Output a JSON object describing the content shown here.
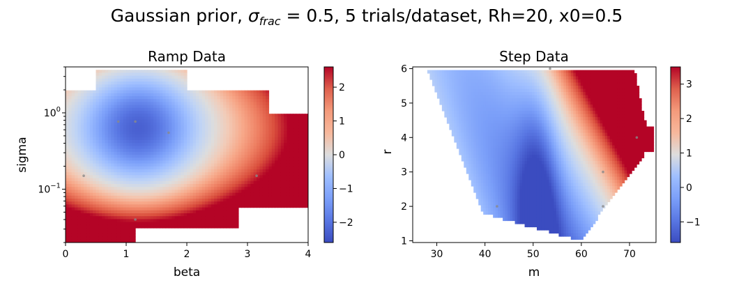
{
  "figure": {
    "title_prefix": "Gaussian prior, ",
    "title_sigma": "σ",
    "title_sub": "frac",
    "title_suffix": " = 0.5, 5 trials/dataset, Rh=20, x0=0.5"
  },
  "chart_data": [
    {
      "type": "heatmap",
      "title": "Ramp Data",
      "xlabel": "beta",
      "ylabel": "sigma",
      "xlim": [
        0,
        4
      ],
      "ylim": [
        0.02,
        4
      ],
      "yscale": "log",
      "x_ticks": [
        "0",
        "1",
        "2",
        "3",
        "4"
      ],
      "y_ticks": [
        {
          "value": 0.1,
          "base": "10",
          "exp": "−1"
        },
        {
          "value": 1,
          "base": "10",
          "exp": "0"
        }
      ],
      "colormap": "coolwarm",
      "colorbar": {
        "min": -2.6,
        "max": 2.6,
        "ticks": [
          "−2",
          "−1",
          "0",
          "1",
          "2"
        ],
        "tick_values": [
          -2,
          -1,
          0,
          1,
          2
        ]
      },
      "points": [
        {
          "x": 0.87,
          "y": 0.77
        },
        {
          "x": 1.15,
          "y": 0.77
        },
        {
          "x": 1.7,
          "y": 0.55
        },
        {
          "x": 0.3,
          "y": 0.15
        },
        {
          "x": 3.15,
          "y": 0.15
        },
        {
          "x": 1.15,
          "y": 0.04
        }
      ]
    },
    {
      "type": "heatmap",
      "title": "Step Data",
      "xlabel": "m",
      "ylabel": "r",
      "xlim": [
        25,
        75.5
      ],
      "ylim": [
        0.95,
        6.05
      ],
      "yscale": "linear",
      "x_ticks": [
        "30",
        "40",
        "50",
        "60",
        "70"
      ],
      "x_tick_values": [
        30,
        40,
        50,
        60,
        70
      ],
      "y_ticks": [
        "1",
        "2",
        "3",
        "4",
        "5",
        "6"
      ],
      "y_tick_values": [
        1,
        2,
        3,
        4,
        5,
        6
      ],
      "colormap": "coolwarm",
      "colorbar": {
        "min": -1.6,
        "max": 3.5,
        "ticks": [
          "−1",
          "0",
          "1",
          "2",
          "3"
        ],
        "tick_values": [
          -1,
          0,
          1,
          2,
          3
        ]
      },
      "points": [
        {
          "x": 53.5,
          "y": 6.0
        },
        {
          "x": 71.5,
          "y": 4.0
        },
        {
          "x": 64.5,
          "y": 3.0
        },
        {
          "x": 42.5,
          "y": 2.0
        },
        {
          "x": 64.5,
          "y": 2.0
        }
      ]
    }
  ]
}
